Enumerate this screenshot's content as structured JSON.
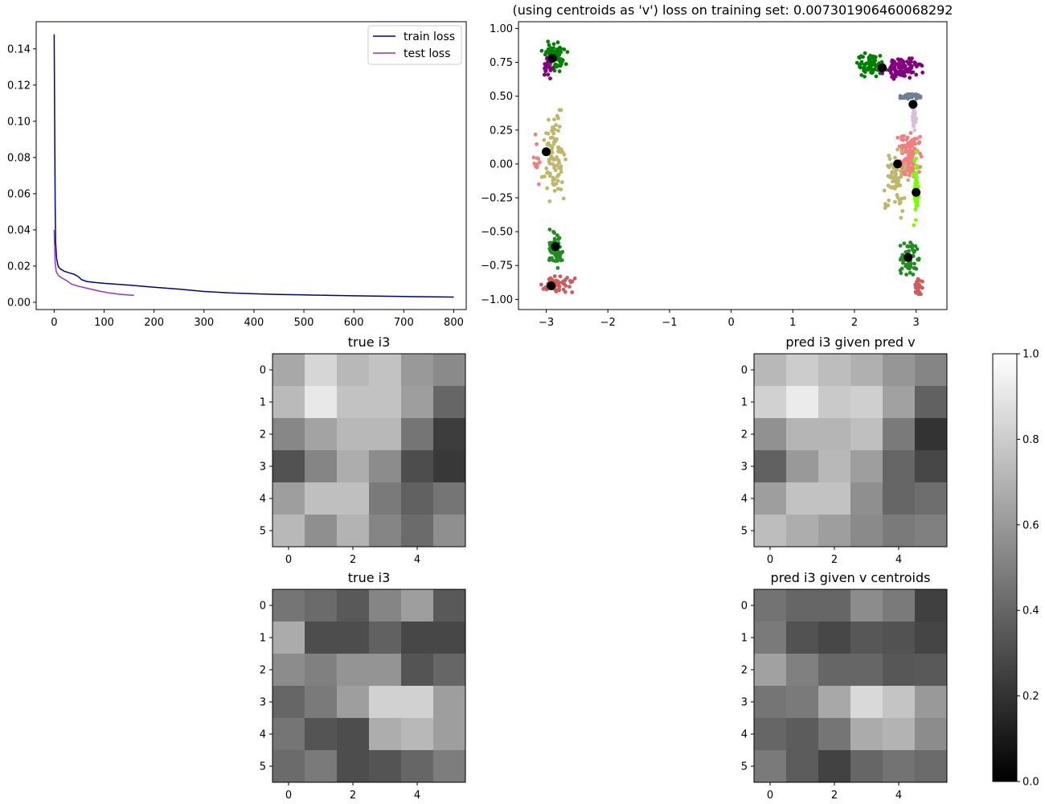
{
  "chart_data": [
    {
      "type": "line",
      "title": "",
      "xlabel": "",
      "ylabel": "",
      "xlim": [
        -36,
        825
      ],
      "ylim": [
        -0.004,
        0.155
      ],
      "xticks": [
        0,
        100,
        200,
        300,
        400,
        500,
        600,
        700,
        800
      ],
      "yticks": [
        0.0,
        0.02,
        0.04,
        0.06,
        0.08,
        0.1,
        0.12,
        0.14
      ],
      "legend": "top-right",
      "series": [
        {
          "name": "train loss",
          "color": "#00008b",
          "points": [
            [
              0,
              0.148
            ],
            [
              1,
              0.1
            ],
            [
              2,
              0.055
            ],
            [
              3,
              0.033
            ],
            [
              5,
              0.024
            ],
            [
              8,
              0.02
            ],
            [
              12,
              0.0185
            ],
            [
              20,
              0.0172
            ],
            [
              30,
              0.0163
            ],
            [
              40,
              0.0155
            ],
            [
              48,
              0.0142
            ],
            [
              55,
              0.0125
            ],
            [
              65,
              0.0115
            ],
            [
              80,
              0.011
            ],
            [
              100,
              0.0105
            ],
            [
              150,
              0.0095
            ],
            [
              200,
              0.0083
            ],
            [
              250,
              0.0073
            ],
            [
              300,
              0.006
            ],
            [
              350,
              0.0052
            ],
            [
              400,
              0.0047
            ],
            [
              450,
              0.0043
            ],
            [
              500,
              0.0041
            ],
            [
              600,
              0.0036
            ],
            [
              700,
              0.0032
            ],
            [
              800,
              0.0029
            ]
          ]
        },
        {
          "name": "test loss",
          "color": "#9932cc",
          "points": [
            [
              0,
              0.04
            ],
            [
              1,
              0.03
            ],
            [
              2,
              0.022
            ],
            [
              4,
              0.017
            ],
            [
              8,
              0.015
            ],
            [
              15,
              0.0135
            ],
            [
              25,
              0.012
            ],
            [
              35,
              0.01
            ],
            [
              50,
              0.0088
            ],
            [
              70,
              0.0075
            ],
            [
              90,
              0.0062
            ],
            [
              110,
              0.0052
            ],
            [
              130,
              0.0045
            ],
            [
              150,
              0.004
            ],
            [
              160,
              0.0038
            ]
          ]
        }
      ]
    },
    {
      "type": "scatter",
      "title": "(using centroids as 'v') loss on training set: 0.007301906460068292",
      "xlabel": "",
      "ylabel": "",
      "xlim": [
        -3.45,
        3.5
      ],
      "ylim": [
        -1.075,
        1.05
      ],
      "xticks": [
        -3,
        -2,
        -1,
        0,
        1,
        2,
        3
      ],
      "yticks": [
        -1.0,
        -0.75,
        -0.5,
        -0.25,
        0.0,
        0.25,
        0.5,
        0.75,
        1.0
      ],
      "clusters": [
        {
          "color": "#008000",
          "cx": -2.85,
          "cy": 0.79,
          "sx": 0.12,
          "sy": 0.07,
          "n": 70
        },
        {
          "color": "#800080",
          "cx": -3.0,
          "cy": 0.72,
          "sx": 0.07,
          "sy": 0.05,
          "n": 20
        },
        {
          "color": "#bdb76b",
          "cx": -2.85,
          "cy": 0.05,
          "sx": 0.12,
          "sy": 0.2,
          "n": 90
        },
        {
          "color": "#f08080",
          "cx": -3.15,
          "cy": 0.02,
          "sx": 0.03,
          "sy": 0.15,
          "n": 14
        },
        {
          "color": "#228b22",
          "cx": -2.85,
          "cy": -0.63,
          "sx": 0.09,
          "sy": 0.08,
          "n": 55
        },
        {
          "color": "#cd5c5c",
          "cx": -2.85,
          "cy": -0.89,
          "sx": 0.18,
          "sy": 0.04,
          "n": 60
        },
        {
          "color": "#008000",
          "cx": 2.25,
          "cy": 0.72,
          "sx": 0.15,
          "sy": 0.07,
          "n": 65
        },
        {
          "color": "#800080",
          "cx": 2.78,
          "cy": 0.71,
          "sx": 0.2,
          "sy": 0.05,
          "n": 95
        },
        {
          "color": "#708090",
          "cx": 2.92,
          "cy": 0.5,
          "sx": 0.1,
          "sy": 0.015,
          "n": 40
        },
        {
          "color": "#d8bfd8",
          "cx": 2.97,
          "cy": 0.34,
          "sx": 0.02,
          "sy": 0.07,
          "n": 30
        },
        {
          "color": "#f08080",
          "cx": 2.9,
          "cy": 0.05,
          "sx": 0.14,
          "sy": 0.13,
          "n": 110
        },
        {
          "color": "#bdb76b",
          "cx": 2.65,
          "cy": -0.1,
          "sx": 0.12,
          "sy": 0.16,
          "n": 75
        },
        {
          "color": "#7cfc00",
          "cx": 3.0,
          "cy": -0.2,
          "sx": 0.03,
          "sy": 0.14,
          "n": 60
        },
        {
          "color": "#228b22",
          "cx": 2.9,
          "cy": -0.7,
          "sx": 0.1,
          "sy": 0.08,
          "n": 60
        },
        {
          "color": "#cd5c5c",
          "cx": 3.05,
          "cy": -0.9,
          "sx": 0.05,
          "sy": 0.05,
          "n": 22
        }
      ],
      "centroids": [
        [
          -2.9,
          0.78
        ],
        [
          -3.0,
          0.09
        ],
        [
          -2.85,
          -0.61
        ],
        [
          -2.92,
          -0.9
        ],
        [
          2.45,
          0.71
        ],
        [
          2.95,
          0.44
        ],
        [
          2.7,
          0.0
        ],
        [
          3.0,
          -0.21
        ],
        [
          2.87,
          -0.69
        ]
      ]
    },
    {
      "type": "heatmap",
      "title": "true i3",
      "xticks": [
        0,
        2,
        4
      ],
      "yticks": [
        0,
        1,
        2,
        3,
        4,
        5
      ],
      "values": [
        [
          0.66,
          0.84,
          0.72,
          0.76,
          0.6,
          0.54
        ],
        [
          0.73,
          0.91,
          0.76,
          0.76,
          0.62,
          0.4
        ],
        [
          0.53,
          0.64,
          0.72,
          0.72,
          0.46,
          0.24
        ],
        [
          0.32,
          0.52,
          0.68,
          0.55,
          0.3,
          0.22
        ],
        [
          0.62,
          0.75,
          0.75,
          0.48,
          0.38,
          0.46
        ],
        [
          0.72,
          0.56,
          0.7,
          0.52,
          0.42,
          0.56
        ]
      ]
    },
    {
      "type": "heatmap",
      "title": "pred i3 given pred v",
      "xticks": [
        0,
        2,
        4
      ],
      "yticks": [
        0,
        1,
        2,
        3,
        4,
        5
      ],
      "values": [
        [
          0.72,
          0.8,
          0.74,
          0.69,
          0.59,
          0.52
        ],
        [
          0.82,
          0.92,
          0.79,
          0.81,
          0.63,
          0.38
        ],
        [
          0.57,
          0.71,
          0.71,
          0.75,
          0.48,
          0.2
        ],
        [
          0.38,
          0.6,
          0.72,
          0.62,
          0.4,
          0.28
        ],
        [
          0.62,
          0.76,
          0.76,
          0.56,
          0.4,
          0.43
        ],
        [
          0.74,
          0.68,
          0.62,
          0.54,
          0.48,
          0.5
        ]
      ]
    },
    {
      "type": "heatmap",
      "title": "true i3",
      "xticks": [
        0,
        2,
        4
      ],
      "yticks": [
        0,
        1,
        2,
        3,
        4,
        5
      ],
      "values": [
        [
          0.46,
          0.42,
          0.35,
          0.52,
          0.62,
          0.35
        ],
        [
          0.67,
          0.3,
          0.3,
          0.38,
          0.28,
          0.28
        ],
        [
          0.55,
          0.5,
          0.58,
          0.58,
          0.33,
          0.4
        ],
        [
          0.4,
          0.48,
          0.62,
          0.82,
          0.82,
          0.62
        ],
        [
          0.46,
          0.33,
          0.3,
          0.68,
          0.72,
          0.62
        ],
        [
          0.42,
          0.48,
          0.3,
          0.33,
          0.4,
          0.49
        ]
      ]
    },
    {
      "type": "heatmap",
      "title": "pred i3 given v centroids",
      "xticks": [
        0,
        2,
        4
      ],
      "yticks": [
        0,
        1,
        2,
        3,
        4,
        5
      ],
      "values": [
        [
          0.45,
          0.4,
          0.4,
          0.55,
          0.48,
          0.25
        ],
        [
          0.48,
          0.32,
          0.28,
          0.34,
          0.32,
          0.27
        ],
        [
          0.63,
          0.5,
          0.4,
          0.4,
          0.34,
          0.35
        ],
        [
          0.46,
          0.48,
          0.66,
          0.85,
          0.77,
          0.6
        ],
        [
          0.4,
          0.36,
          0.46,
          0.67,
          0.7,
          0.55
        ],
        [
          0.48,
          0.36,
          0.26,
          0.4,
          0.45,
          0.42
        ]
      ]
    }
  ],
  "colorbar": {
    "vmin": 0.0,
    "vmax": 1.0,
    "ticks": [
      "0.0",
      "0.2",
      "0.4",
      "0.6",
      "0.8",
      "1.0"
    ],
    "colormap": "gray"
  }
}
